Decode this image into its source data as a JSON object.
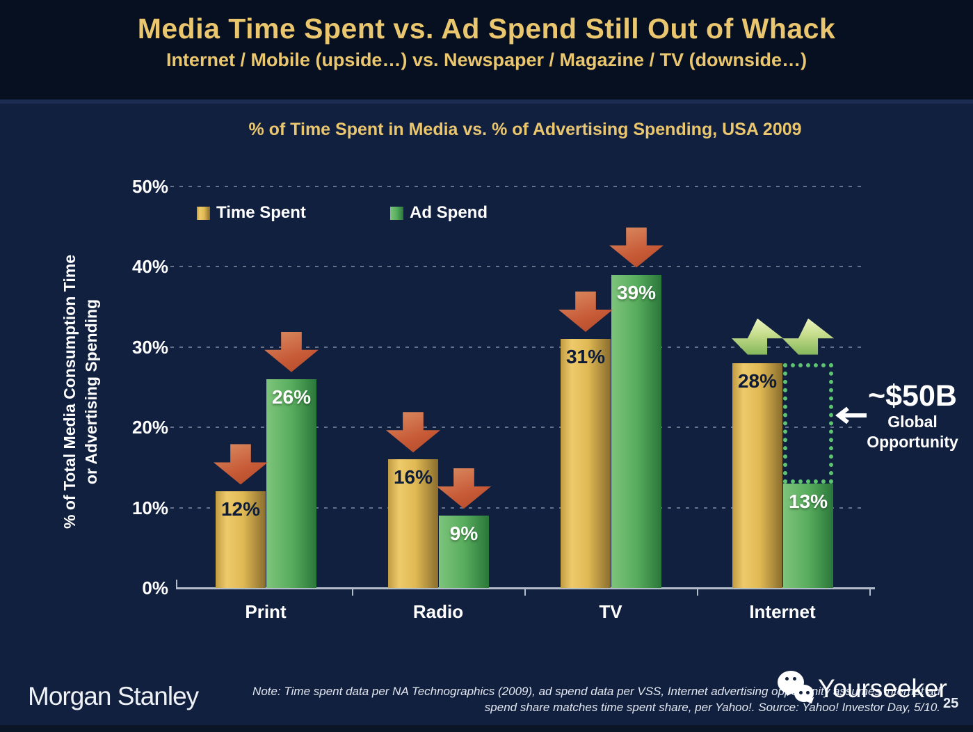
{
  "header": {
    "title": "Media Time Spent vs. Ad Spend Still Out of Whack",
    "subtitle": "Internet / Mobile (upside…) vs. Newspaper / Magazine / TV (downside…)"
  },
  "chart_data": {
    "type": "bar",
    "title": "% of Time Spent in Media vs. % of Advertising Spending, USA 2009",
    "ylabel_lines": [
      "% of Total Media Consumption Time",
      "or Advertising Spending"
    ],
    "categories": [
      "Print",
      "Radio",
      "TV",
      "Internet"
    ],
    "series": [
      {
        "name": "Time Spent",
        "color": "#e3bc55",
        "values": [
          12,
          16,
          31,
          28
        ]
      },
      {
        "name": "Ad Spend",
        "color": "#58ad5d",
        "values": [
          26,
          9,
          39,
          13
        ]
      }
    ],
    "bar_labels": [
      [
        "12%",
        "16%",
        "31%",
        "28%"
      ],
      [
        "26%",
        "9%",
        "39%",
        "13%"
      ]
    ],
    "y_ticks": [
      {
        "value": 0,
        "label": "0%"
      },
      {
        "value": 10,
        "label": "10%"
      },
      {
        "value": 20,
        "label": "20%"
      },
      {
        "value": 30,
        "label": "30%"
      },
      {
        "value": 40,
        "label": "40%"
      },
      {
        "value": 50,
        "label": "50%"
      }
    ],
    "ylim": [
      0,
      50
    ],
    "grid": "horizontal-dotted",
    "legend_position": "top-left",
    "trend_markers": [
      [
        "down",
        "down"
      ],
      [
        "down",
        "down"
      ],
      [
        "down",
        "down"
      ],
      [
        "up",
        "up"
      ]
    ],
    "opportunity_box": {
      "category_index": 3,
      "series_index": 1,
      "from_value": 13,
      "to_value": 28
    },
    "annotation": {
      "headline": "~$50B",
      "lines": [
        "Global",
        "Opportunity"
      ]
    }
  },
  "colors": {
    "title_gold": "#eac66e",
    "bar_gold": "#e3bc55",
    "bar_green": "#58ad5d",
    "arrow_down": "#c75a37",
    "arrow_up": "#c4dc8a",
    "opportunity_box_border": "#5dc271",
    "header_bg": "#061021",
    "body_bg": "#122040"
  },
  "footer": {
    "brand": "Morgan Stanley",
    "note_line1": "Note: Time spent data per NA Technographics (2009), ad spend data per VSS, Internet advertising opportunity assumes Internet ad",
    "note_line2": "spend share matches time spent share, per Yahoo!. Source: Yahoo! Investor Day, 5/10.",
    "page_number": "25"
  },
  "watermark": {
    "icon": "wechat-icon",
    "text": "Yourseeker"
  }
}
